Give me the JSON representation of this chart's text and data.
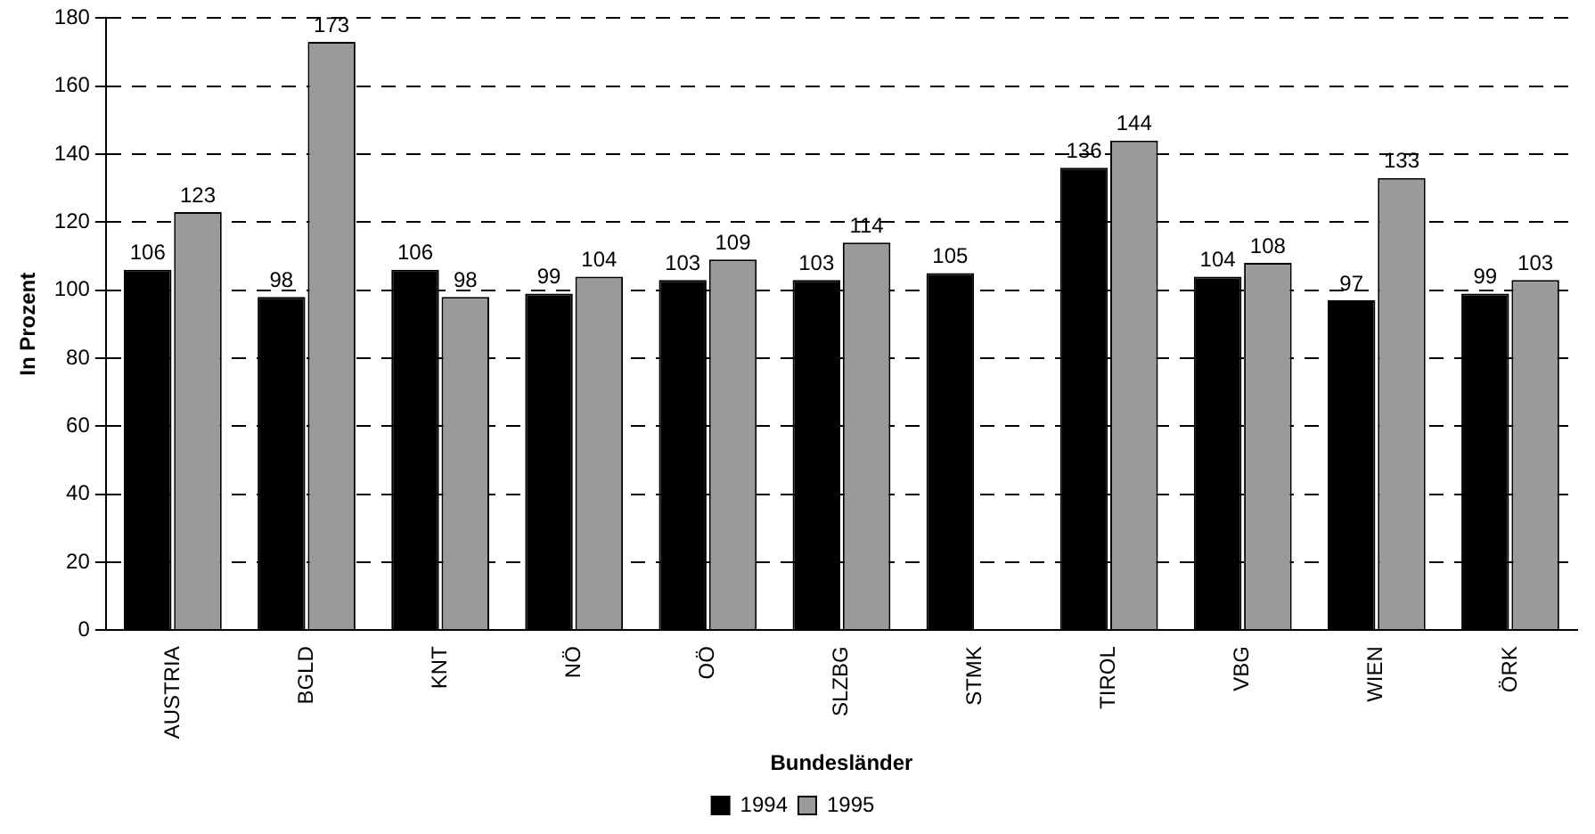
{
  "chart_data": {
    "type": "bar",
    "xlabel": "Bundesländer",
    "ylabel": "In Prozent",
    "categories": [
      "AUSTRIA",
      "BGLD",
      "KNT",
      "NÖ",
      "OÖ",
      "SLZBG",
      "STMK",
      "TIROL",
      "VBG",
      "WIEN",
      "ÖRK"
    ],
    "series": [
      {
        "name": "1994",
        "color": "#000000",
        "values": [
          106,
          98,
          106,
          99,
          103,
          103,
          105,
          136,
          104,
          97,
          99
        ]
      },
      {
        "name": "1995",
        "color": "#9a9a9a",
        "values": [
          123,
          173,
          98,
          104,
          109,
          114,
          null,
          144,
          108,
          133,
          103
        ]
      }
    ],
    "ylim": [
      0,
      180
    ],
    "yticks": [
      0,
      20,
      40,
      60,
      80,
      100,
      120,
      140,
      160,
      180
    ],
    "grid": "y",
    "legend": "bottom",
    "data_labels": true
  }
}
